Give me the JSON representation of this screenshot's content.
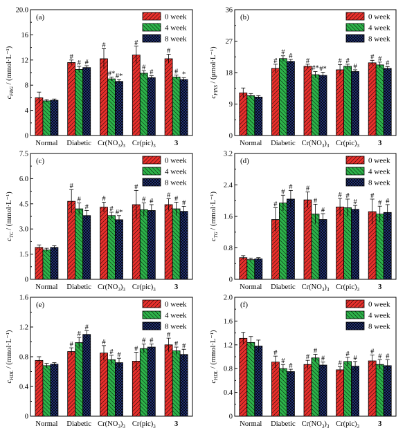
{
  "legend_labels": [
    "0 week",
    "4 week",
    "8 week"
  ],
  "series_colors": {
    "s0": "#e8302c",
    "s1": "#2db34a",
    "s2": "#283c8c"
  },
  "chart_data": [
    {
      "type": "bar",
      "panel_label": "(a)",
      "categories": [
        "Normal",
        "Diabetic",
        "Cr(NO3)3",
        "Cr(pic)3",
        "3"
      ],
      "y_sub": "FBG",
      "y_unit": "(mmol·L⁻¹)",
      "ylim": [
        0,
        20
      ],
      "yticks": [
        "0",
        "4",
        "8",
        "12",
        "16",
        "20.0"
      ],
      "legend_position": "top-right",
      "series": [
        {
          "name": "0 week",
          "values": [
            6.0,
            11.6,
            12.2,
            12.8,
            12.2
          ],
          "errors": [
            0.9,
            0.4,
            1.6,
            1.4,
            0.7
          ],
          "marks": [
            "",
            "#",
            "#",
            "#",
            "#"
          ]
        },
        {
          "name": "4 week",
          "values": [
            5.5,
            10.5,
            9.0,
            9.9,
            9.3
          ],
          "errors": [
            0.2,
            0.5,
            0.3,
            0.4,
            0.3
          ],
          "marks": [
            "",
            "#",
            "#*",
            "#",
            "#"
          ]
        },
        {
          "name": "8 week",
          "values": [
            5.6,
            10.8,
            8.6,
            9.2,
            8.9
          ],
          "errors": [
            0.2,
            0.3,
            0.3,
            0.3,
            0.3
          ],
          "marks": [
            "",
            "#",
            "#*",
            "#",
            "*"
          ]
        }
      ]
    },
    {
      "type": "bar",
      "panel_label": "(b)",
      "categories": [
        "Normal",
        "Diabetic",
        "Cr(NO3)3",
        "Cr(pic)3",
        "3"
      ],
      "y_sub": "FINS",
      "y_unit": "(μmol·L⁻¹)",
      "ylim": [
        0,
        36
      ],
      "yticks": [
        "0",
        "9",
        "18",
        "27",
        "36"
      ],
      "legend_position": "top-right",
      "series": [
        {
          "name": "0 week",
          "values": [
            12.2,
            19.2,
            19.8,
            18.8,
            20.8
          ],
          "errors": [
            1.4,
            1.2,
            0.6,
            1.5,
            0.7
          ],
          "marks": [
            "",
            "#",
            "#",
            "#",
            "#"
          ]
        },
        {
          "name": "4 week",
          "values": [
            11.4,
            22.0,
            17.4,
            19.8,
            20.2
          ],
          "errors": [
            0.6,
            0.8,
            0.9,
            0.6,
            0.8
          ],
          "marks": [
            "",
            "#",
            "#*",
            "#",
            "#"
          ]
        },
        {
          "name": "8 week",
          "values": [
            11.0,
            21.2,
            17.2,
            18.3,
            19.2
          ],
          "errors": [
            0.4,
            0.6,
            0.9,
            0.5,
            0.5
          ],
          "marks": [
            "",
            "#",
            "#*",
            "#",
            "#"
          ]
        }
      ]
    },
    {
      "type": "bar",
      "panel_label": "(c)",
      "categories": [
        "Normal",
        "Diabetic",
        "Cr(NO3)3",
        "Cr(pic)3",
        "3"
      ],
      "y_sub": "TC",
      "y_unit": "(mmol·L⁻¹)",
      "ylim": [
        0,
        7.5
      ],
      "yticks": [
        "0",
        "1.5",
        "3.0",
        "4.5",
        "6.0",
        "7.5"
      ],
      "legend_position": "top-right",
      "series": [
        {
          "name": "0 week",
          "values": [
            1.9,
            4.65,
            4.3,
            4.45,
            4.45
          ],
          "errors": [
            0.15,
            0.7,
            0.3,
            0.85,
            0.35
          ],
          "marks": [
            "",
            "#",
            "#",
            "#",
            "#"
          ]
        },
        {
          "name": "4 week",
          "values": [
            1.75,
            4.2,
            3.8,
            4.15,
            4.2
          ],
          "errors": [
            0.1,
            0.35,
            0.2,
            0.4,
            0.4
          ],
          "marks": [
            "",
            "#",
            "#",
            "#",
            "#"
          ]
        },
        {
          "name": "8 week",
          "values": [
            1.9,
            3.8,
            3.55,
            4.1,
            4.05
          ],
          "errors": [
            0.1,
            0.3,
            0.25,
            0.35,
            0.3
          ],
          "marks": [
            "",
            "#",
            "#*",
            "#",
            "#"
          ]
        }
      ]
    },
    {
      "type": "bar",
      "panel_label": "(d)",
      "categories": [
        "Normal",
        "Diabetic",
        "Cr(NO3)3",
        "Cr(pic)3",
        "3"
      ],
      "y_sub": "TG",
      "y_unit": "(mmol·L⁻¹)",
      "ylim": [
        0,
        3.2
      ],
      "yticks": [
        "0",
        "0.8",
        "1.6",
        "2.4",
        "3.2"
      ],
      "legend_position": "top-right",
      "series": [
        {
          "name": "0 week",
          "values": [
            0.55,
            1.52,
            2.02,
            1.84,
            1.72
          ],
          "errors": [
            0.05,
            0.3,
            0.2,
            0.22,
            0.32
          ],
          "marks": [
            "",
            "#",
            "#",
            "#",
            "#"
          ]
        },
        {
          "name": "4 week",
          "values": [
            0.5,
            1.94,
            1.66,
            1.82,
            1.66
          ],
          "errors": [
            0.04,
            0.2,
            0.25,
            0.22,
            0.2
          ],
          "marks": [
            "",
            "#",
            "#",
            "#",
            "#"
          ]
        },
        {
          "name": "8 week",
          "values": [
            0.52,
            2.04,
            1.52,
            1.78,
            1.7
          ],
          "errors": [
            0.03,
            0.22,
            0.15,
            0.1,
            0.2
          ],
          "marks": [
            "",
            "#",
            "#",
            "#",
            "#"
          ]
        }
      ]
    },
    {
      "type": "bar",
      "panel_label": "(e)",
      "categories": [
        "Normal",
        "Diabetic",
        "Cr(NO3)3",
        "Cr(pic)3",
        "3"
      ],
      "y_sub": "HDL",
      "y_unit": "(mmol·L⁻¹)",
      "ylim": [
        0,
        1.6
      ],
      "yticks": [
        "0",
        "0.4",
        "0.8",
        "1.2",
        "1.6"
      ],
      "legend_position": "top-right",
      "series": [
        {
          "name": "0 week",
          "values": [
            0.75,
            0.87,
            0.85,
            0.74,
            0.96
          ],
          "errors": [
            0.05,
            0.05,
            0.1,
            0.12,
            0.09
          ],
          "marks": [
            "",
            "#",
            "#",
            "#",
            "#"
          ]
        },
        {
          "name": "4 week",
          "values": [
            0.68,
            0.99,
            0.76,
            0.91,
            0.88
          ],
          "errors": [
            0.03,
            0.07,
            0.06,
            0.06,
            0.05
          ],
          "marks": [
            "",
            "#",
            "#",
            "#",
            "#"
          ]
        },
        {
          "name": "8 week",
          "values": [
            0.7,
            1.1,
            0.72,
            0.93,
            0.83
          ],
          "errors": [
            0.02,
            0.05,
            0.06,
            0.04,
            0.07
          ],
          "marks": [
            "",
            "#",
            "#",
            "#",
            "#"
          ]
        }
      ]
    },
    {
      "type": "bar",
      "panel_label": "(f)",
      "categories": [
        "Normal",
        "Diabetic",
        "Cr(NO3)3",
        "Cr(pic)3",
        "3"
      ],
      "y_sub": "HDL",
      "y_unit": "(mmol·L⁻¹)",
      "ylim": [
        0,
        2.0
      ],
      "yticks": [
        "0",
        "0.4",
        "0.8",
        "1.2",
        "1.6",
        "2.0"
      ],
      "legend_position": "top-right",
      "series": [
        {
          "name": "0 week",
          "values": [
            1.31,
            0.91,
            0.87,
            0.78,
            0.93
          ],
          "errors": [
            0.1,
            0.1,
            0.07,
            0.05,
            0.1
          ],
          "marks": [
            "",
            "#",
            "#",
            "#",
            "#"
          ]
        },
        {
          "name": "4 week",
          "values": [
            1.24,
            0.8,
            0.98,
            0.92,
            0.87
          ],
          "errors": [
            0.1,
            0.07,
            0.06,
            0.07,
            0.08
          ],
          "marks": [
            "",
            "#",
            "#",
            "#",
            "#"
          ]
        },
        {
          "name": "8 week",
          "values": [
            1.18,
            0.75,
            0.86,
            0.84,
            0.85
          ],
          "errors": [
            0.1,
            0.04,
            0.05,
            0.08,
            0.1
          ],
          "marks": [
            "",
            "#",
            "#",
            "#",
            "#"
          ]
        }
      ]
    }
  ]
}
